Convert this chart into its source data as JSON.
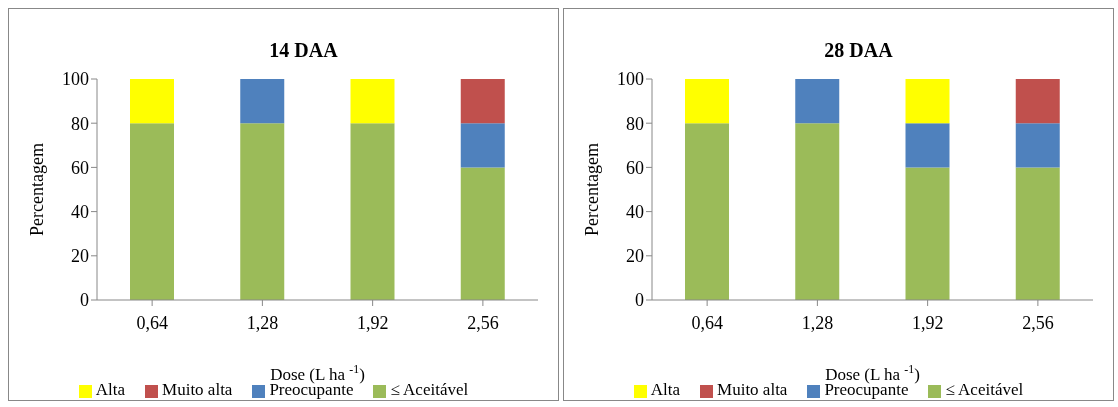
{
  "chart_data": [
    {
      "type": "bar",
      "title": "14 DAA",
      "xlabel": "Dose (L ha $^{-1}$)",
      "ylabel": "Percentagem",
      "categories": [
        "0,64",
        "1,28",
        "1,92",
        "2,56"
      ],
      "stacked": true,
      "ylim": [
        0,
        100
      ],
      "yticks": [
        0,
        20,
        40,
        60,
        80,
        100
      ],
      "grid": false,
      "legend": "bottom",
      "series": [
        {
          "name": "≤ Aceitável",
          "color": "#9bbb59",
          "values": [
            80,
            80,
            80,
            60
          ]
        },
        {
          "name": "Preocupante",
          "color": "#4f81bd",
          "values": [
            0,
            20,
            0,
            20
          ]
        },
        {
          "name": "Alta",
          "color": "#ffff00",
          "values": [
            20,
            0,
            20,
            0
          ]
        },
        {
          "name": "Muito alta",
          "color": "#c0504d",
          "values": [
            0,
            0,
            0,
            20
          ]
        }
      ]
    },
    {
      "type": "bar",
      "title": "28 DAA",
      "xlabel": "Dose (L ha $^{-1}$)",
      "ylabel": "Percentagem",
      "categories": [
        "0,64",
        "1,28",
        "1,92",
        "2,56"
      ],
      "stacked": true,
      "ylim": [
        0,
        100
      ],
      "yticks": [
        0,
        20,
        40,
        60,
        80,
        100
      ],
      "grid": false,
      "legend": "bottom",
      "series": [
        {
          "name": "≤ Aceitável",
          "color": "#9bbb59",
          "values": [
            80,
            80,
            60,
            60
          ]
        },
        {
          "name": "Preocupante",
          "color": "#4f81bd",
          "values": [
            0,
            20,
            20,
            20
          ]
        },
        {
          "name": "Alta",
          "color": "#ffff00",
          "values": [
            20,
            0,
            20,
            0
          ]
        },
        {
          "name": "Muito alta",
          "color": "#c0504d",
          "values": [
            0,
            0,
            0,
            20
          ]
        }
      ]
    }
  ]
}
